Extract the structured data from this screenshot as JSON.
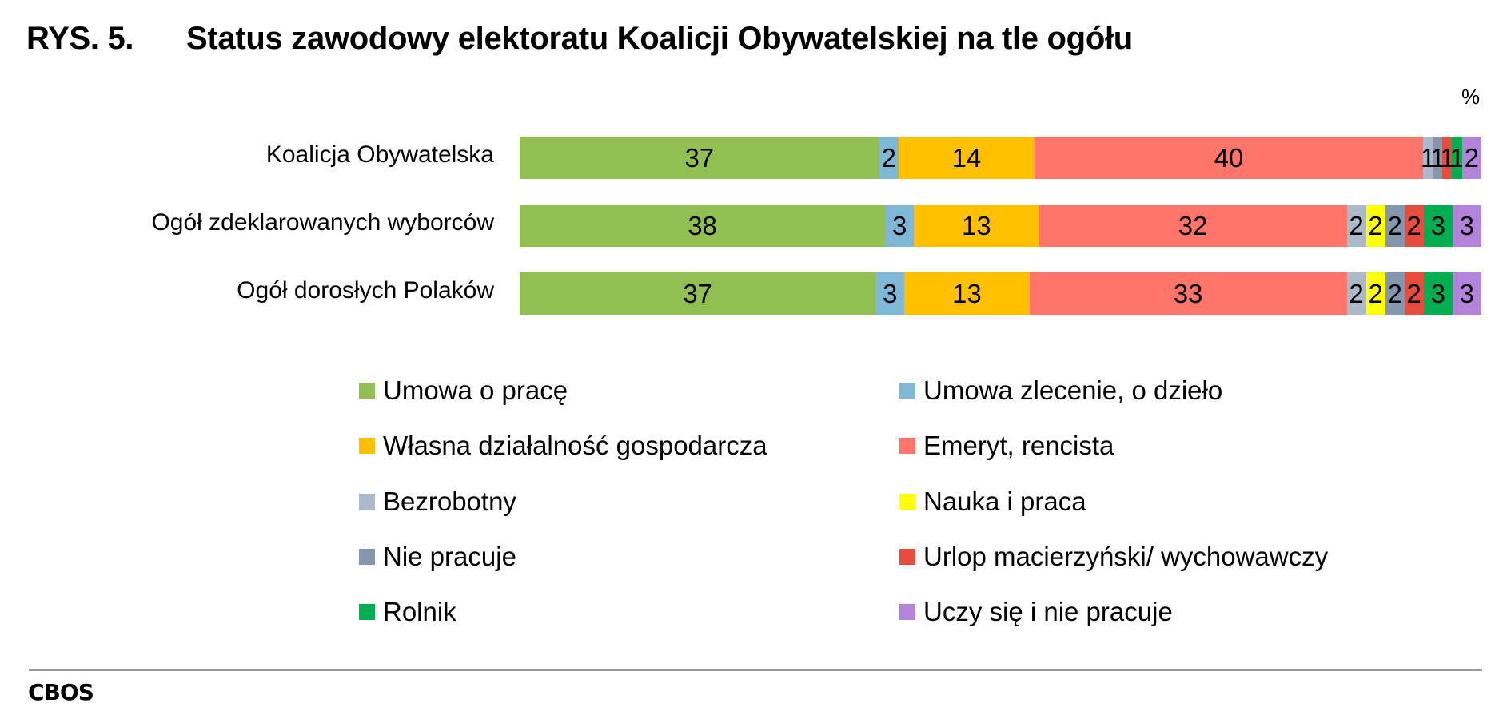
{
  "header": {
    "figure_number": "RYS. 5.",
    "title": "Status zawodowy elektoratu Koalicji Obywatelskiej na tle ogółu",
    "unit": "%"
  },
  "footer": {
    "source": "CBOS"
  },
  "colors": {
    "Umowa o pracę": "#92BF52",
    "Umowa zlecenie, o dzieło": "#7FB8D6",
    "Własna działalność gospodarcza": "#FFC000",
    "Emeryt, rencista": "#FF7569",
    "Bezrobotny": "#ACB9CA",
    "Nauka i praca": "#FFFF00",
    "Nie pracuje": "#8496B0",
    "Urlop macierzyński/ wychowawczy": "#E74C3C",
    "Rolnik": "#00B050",
    "Uczy się i nie pracuje": "#B383DC"
  },
  "legend": [
    {
      "label": "Umowa o pracę",
      "color": "#92BF52"
    },
    {
      "label": "Umowa zlecenie, o dzieło",
      "color": "#7FB8D6"
    },
    {
      "label": "Własna działalność gospodarcza",
      "color": "#FFC000"
    },
    {
      "label": "Emeryt, rencista",
      "color": "#FF7569"
    },
    {
      "label": "Bezrobotny",
      "color": "#ACB9CA"
    },
    {
      "label": "Nauka i praca",
      "color": "#FFFF00"
    },
    {
      "label": "Nie pracuje",
      "color": "#8496B0"
    },
    {
      "label": "Urlop macierzyński/ wychowawczy",
      "color": "#E74C3C"
    },
    {
      "label": "Rolnik",
      "color": "#00B050"
    },
    {
      "label": "Uczy się i nie pracuje",
      "color": "#B383DC"
    }
  ],
  "chart_data": {
    "type": "bar",
    "orientation": "horizontal",
    "stacked": true,
    "title": "Status zawodowy elektoratu Koalicji Obywatelskiej na tle ogółu",
    "xlabel": "",
    "ylabel": "",
    "unit": "%",
    "xlim": [
      0,
      100
    ],
    "grid": false,
    "legend_position": "bottom",
    "categories": [
      "Koalicja Obywatelska",
      "Ogół zdeklarowanych wyborców",
      "Ogół dorosłych Polaków"
    ],
    "series": [
      {
        "name": "Umowa o pracę",
        "values": [
          37,
          38,
          37
        ]
      },
      {
        "name": "Umowa zlecenie, o dzieło",
        "values": [
          2,
          3,
          3
        ]
      },
      {
        "name": "Własna działalność gospodarcza",
        "values": [
          14,
          13,
          13
        ]
      },
      {
        "name": "Emeryt, rencista",
        "values": [
          40,
          32,
          33
        ]
      },
      {
        "name": "Bezrobotny",
        "values": [
          1,
          2,
          2
        ]
      },
      {
        "name": "Nauka i praca",
        "values": [
          0,
          2,
          2
        ]
      },
      {
        "name": "Nie pracuje",
        "values": [
          1,
          2,
          2
        ]
      },
      {
        "name": "Urlop macierzyński/ wychowawczy",
        "values": [
          1,
          2,
          2
        ]
      },
      {
        "name": "Rolnik",
        "values": [
          1,
          3,
          3
        ]
      },
      {
        "name": "Uczy się i nie pracuje",
        "values": [
          2,
          3,
          3
        ]
      }
    ]
  }
}
